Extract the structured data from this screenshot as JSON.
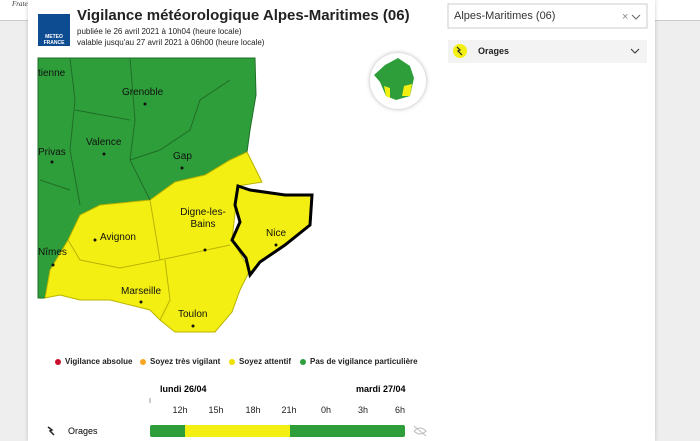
{
  "header": {
    "motto": "Fraternité"
  },
  "logo": {
    "line1": "METEO",
    "line2": "FRANCE"
  },
  "title": "Vigilance météorologique Alpes-Maritimes (06)",
  "published": "publiée le 26 avril 2021 à 10h04 (heure locale)",
  "valid_until": "valable jusqu'au 27 avril 2021 à 06h00 (heure locale)",
  "map": {
    "cities": [
      "tienne",
      "Grenoble",
      "Valence",
      "Privas",
      "Gap",
      "Avignon",
      "Digne-les-Bains",
      "Nice",
      "Nîmes",
      "Marseille",
      "Toulon"
    ]
  },
  "legend": [
    "Vigilance absolue",
    "Soyez très vigilant",
    "Soyez attentif",
    "Pas de vigilance particulière"
  ],
  "timeline": {
    "days": [
      "lundi 26/04",
      "mardi 27/04"
    ],
    "hours": [
      "12h",
      "15h",
      "18h",
      "21h",
      "0h",
      "3h",
      "6h"
    ],
    "rows": [
      "Orages"
    ]
  },
  "panel": {
    "select": "Alpes-Maritimes (06)",
    "item": "Orages"
  }
}
